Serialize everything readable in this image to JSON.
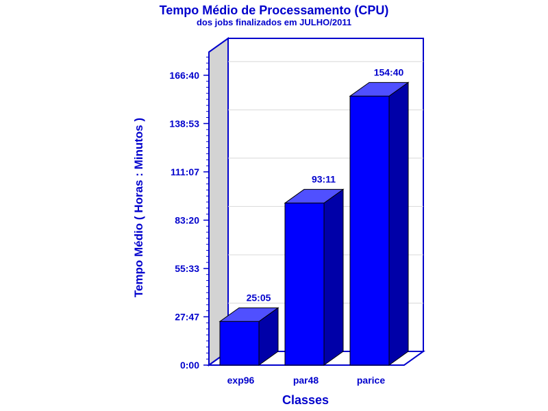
{
  "chart_data": {
    "type": "bar",
    "title": "Tempo Médio de Processamento (CPU)",
    "subtitle": "dos jobs finalizados em JULHO/2011",
    "xlabel": "Classes",
    "ylabel": "Tempo Médio ( Horas : Minutos )",
    "categories": [
      "exp96",
      "par48",
      "parice"
    ],
    "values": [
      25.0833,
      93.1833,
      154.6667
    ],
    "data_labels": [
      "25:05",
      "93:11",
      "154:40"
    ],
    "ylim": [
      0,
      180
    ],
    "yticks": [
      0,
      27.7833,
      55.55,
      83.3333,
      111.1167,
      138.8833,
      166.6667
    ],
    "ytick_labels": [
      "0:00",
      "27:47",
      "55:33",
      "83:20",
      "111:07",
      "138:53",
      "166:40"
    ],
    "grid": true,
    "style": "3d",
    "colors": {
      "bar_front": "#0000ff",
      "bar_top": "#5050ff",
      "bar_side": "#0000a8",
      "axis": "#0000cc",
      "side_wall": "#d3d3d3",
      "grid": "#d8d8d8"
    }
  }
}
